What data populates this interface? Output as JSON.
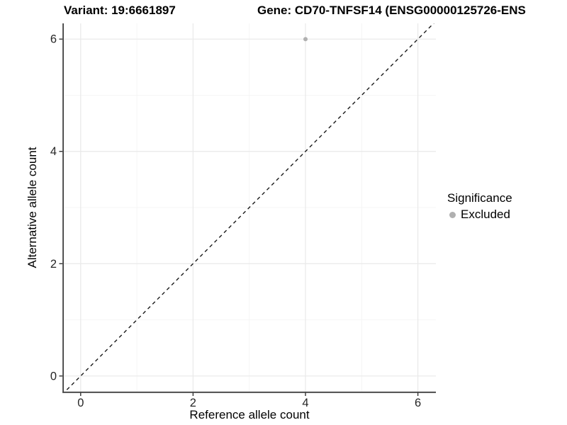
{
  "chart_data": {
    "type": "scatter",
    "titles": {
      "left": "Variant: 19:6661897",
      "right": "Gene: CD70-TNFSF14 (ENSG00000125726-ENS"
    },
    "xlabel": "Reference allele count",
    "ylabel": "Alternative allele count",
    "x_ticks": [
      0,
      2,
      4,
      6
    ],
    "y_ticks": [
      0,
      2,
      4,
      6
    ],
    "x_minor_ticks": [
      1,
      3,
      5
    ],
    "y_minor_ticks": [
      1,
      3,
      5
    ],
    "xlim": [
      -0.3,
      6.32
    ],
    "ylim": [
      -0.28,
      6.28
    ],
    "grid": "major+minor, light gray on white",
    "reference_line": {
      "type": "identity y=x",
      "style": "dashed",
      "color": "#1a1a1a"
    },
    "series": [
      {
        "name": "Excluded",
        "marker": "circle",
        "color": "#b0b0b0",
        "points": [
          {
            "x": 4,
            "y": 6
          }
        ]
      }
    ],
    "legend": {
      "title": "Significance",
      "position": "right",
      "items": [
        {
          "label": "Excluded",
          "color": "#b0b0b0"
        }
      ]
    },
    "colors": {
      "background": "#ffffff",
      "axis_line": "#404040",
      "tick_mark": "#333333",
      "tick_text": "#262626",
      "grid_major": "#e9e9e9",
      "grid_minor": "#f4f4f4",
      "point_gray": "#b0b0b0"
    }
  }
}
